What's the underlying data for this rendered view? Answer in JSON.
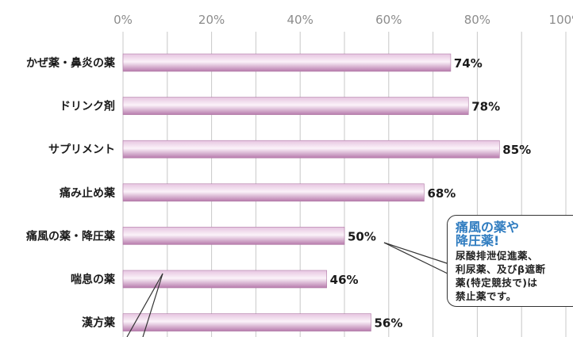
{
  "chart_data": {
    "type": "bar",
    "orientation": "horizontal",
    "categories": [
      "かぜ薬・鼻炎の薬",
      "ドリンク剤",
      "サプリメント",
      "痛み止め薬",
      "痛風の薬・降圧薬",
      "喘息の薬",
      "漢方薬"
    ],
    "values": [
      74,
      78,
      85,
      68,
      50,
      46,
      56
    ],
    "value_labels": [
      "74%",
      "78%",
      "85%",
      "68%",
      "50%",
      "46%",
      "56%"
    ],
    "x_ticks": [
      "0%",
      "20%",
      "40%",
      "60%",
      "80%",
      "100%"
    ],
    "xlim": [
      0,
      100
    ],
    "grid": true,
    "bar_color": "#c98fc0"
  },
  "callout": {
    "title_lines": [
      "痛風の薬や",
      "降圧薬!"
    ],
    "body_lines": [
      "尿酸排泄促進薬、",
      "利尿薬、及びβ遮断",
      "薬(特定競技で)は",
      "禁止薬です。"
    ]
  }
}
